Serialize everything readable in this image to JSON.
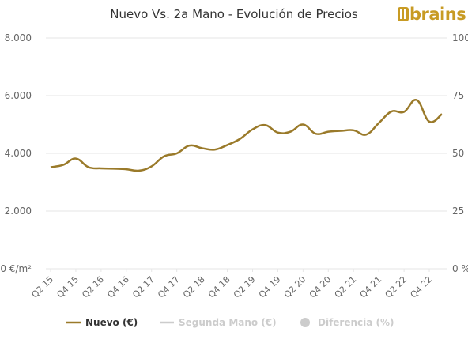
{
  "logo": {
    "text": "brains"
  },
  "colors": {
    "nuevo": "#9a7a2a",
    "segunda": "#cccccc",
    "diferencia": "#cccccc",
    "grid": "#e6e6e6",
    "text": "#333333",
    "muted": "#bdbdbd"
  },
  "chart_data": {
    "type": "line",
    "title": "Nuevo Vs. 2a Mano - Evolución de Precios",
    "left_axis": {
      "ticks": [
        "0 €/m²",
        "2.000",
        "4.000",
        "6.000",
        "8.000"
      ],
      "range": [
        0,
        8000
      ]
    },
    "right_axis": {
      "ticks": [
        "0 %",
        "25",
        "50",
        "75",
        "100"
      ],
      "range": [
        0,
        100
      ]
    },
    "x_tick_labels": [
      "Q2 15",
      "Q4 15",
      "Q2 16",
      "Q4 16",
      "Q2 17",
      "Q4 17",
      "Q2 18",
      "Q4 18",
      "Q2 19",
      "Q4 19",
      "Q2 20",
      "Q4 20",
      "Q2 21",
      "Q4 21",
      "Q2 22",
      "Q4 22"
    ],
    "x": [
      "Q2 15",
      "Q3 15",
      "Q4 15",
      "Q1 16",
      "Q2 16",
      "Q3 16",
      "Q4 16",
      "Q1 17",
      "Q2 17",
      "Q3 17",
      "Q4 17",
      "Q1 18",
      "Q2 18",
      "Q3 18",
      "Q4 18",
      "Q1 19",
      "Q2 19",
      "Q3 19",
      "Q4 19",
      "Q1 20",
      "Q2 20",
      "Q3 20",
      "Q4 20",
      "Q1 21",
      "Q2 21",
      "Q3 21",
      "Q4 21",
      "Q1 22",
      "Q2 22",
      "Q3 22",
      "Q4 22",
      "Q1 23"
    ],
    "series": [
      {
        "name": "Nuevo (€)",
        "values": [
          3520,
          3600,
          3820,
          3520,
          3480,
          3470,
          3450,
          3400,
          3550,
          3900,
          4000,
          4270,
          4180,
          4130,
          4290,
          4500,
          4830,
          4980,
          4720,
          4750,
          5000,
          4680,
          4750,
          4780,
          4800,
          4650,
          5050,
          5450,
          5440,
          5850,
          5100,
          5360
        ]
      }
    ],
    "legend": [
      {
        "label": "Nuevo (€)",
        "active": true
      },
      {
        "label": "Segunda Mano (€)",
        "active": false
      },
      {
        "label": "Diferencia (%)",
        "active": false
      }
    ]
  }
}
